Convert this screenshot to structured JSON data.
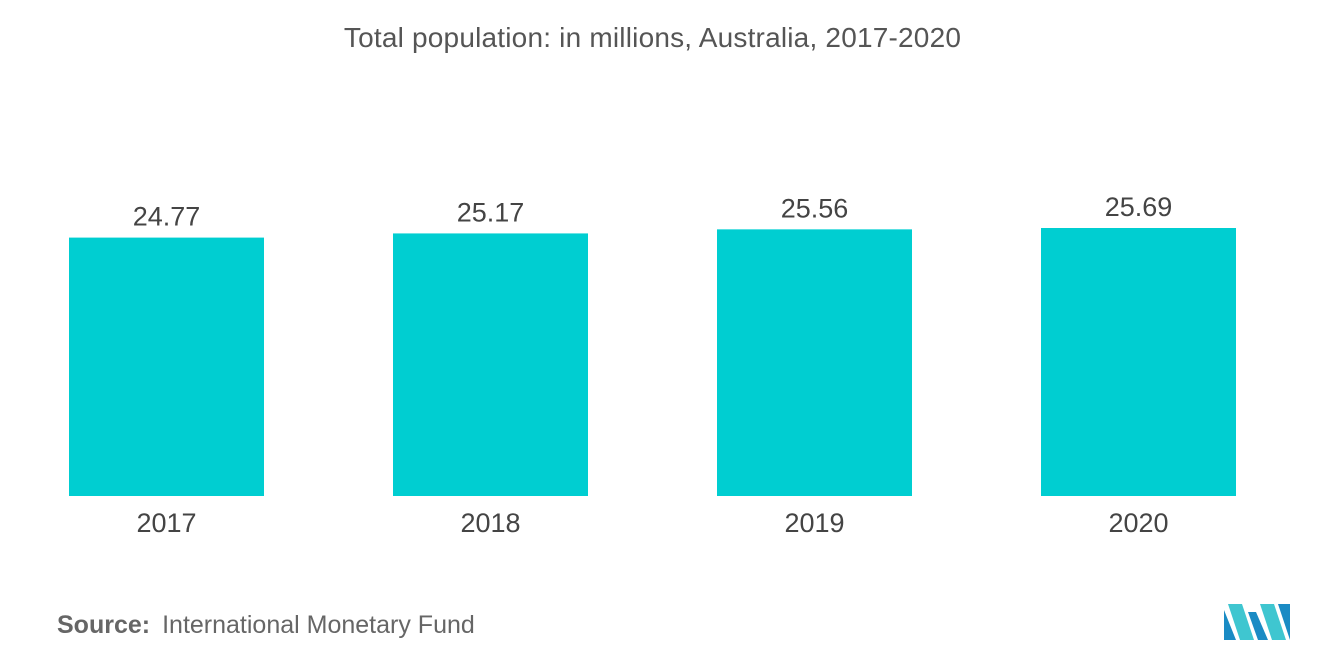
{
  "chart_data": {
    "type": "bar",
    "title": "Total population: in millions, Australia, 2017-2020",
    "categories": [
      "2017",
      "2018",
      "2019",
      "2020"
    ],
    "values": [
      24.77,
      25.17,
      25.56,
      25.69
    ],
    "value_labels": [
      "24.77",
      "25.17",
      "25.56",
      "25.69"
    ],
    "xlabel": "",
    "ylabel": "",
    "ylim": [
      0,
      25.69
    ],
    "grid": false,
    "legend": "none",
    "bar_color": "#00ced1"
  },
  "source": {
    "label": "Source:",
    "text": "International Monetary Fund"
  },
  "logo": {
    "icon": "mordor-intelligence-logo-icon",
    "colors": [
      "#1a8bc4",
      "#3fc6d0"
    ]
  }
}
